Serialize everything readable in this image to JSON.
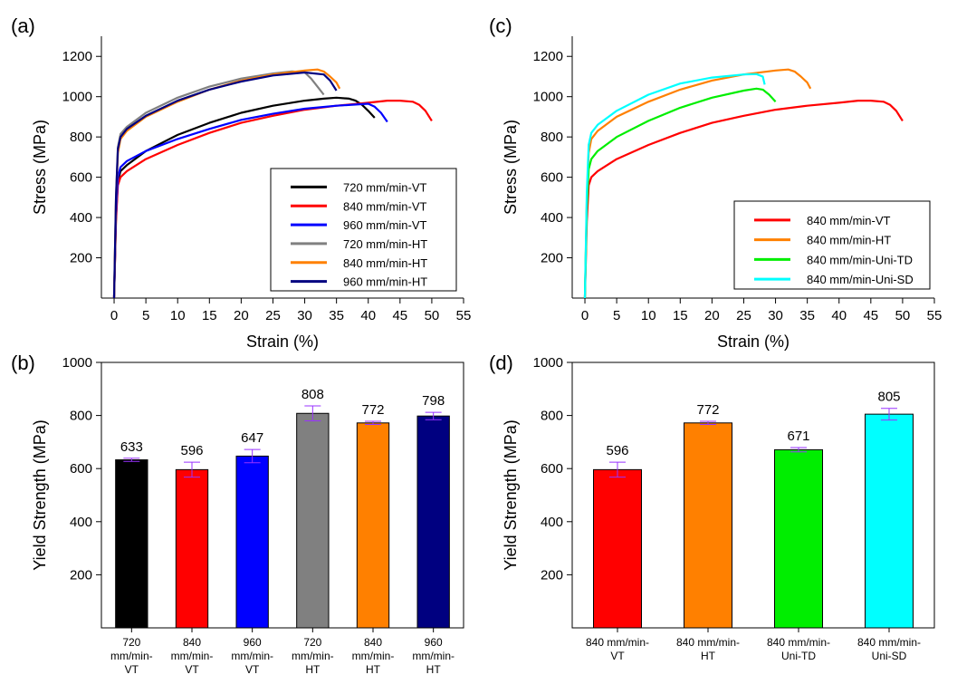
{
  "panels": {
    "a": "(a)",
    "b": "(b)",
    "c": "(c)",
    "d": "(d)"
  },
  "chart_data": [
    {
      "id": "a",
      "type": "line",
      "xlabel": "Strain (%)",
      "ylabel": "Stress (MPa)",
      "xlim": [
        -2,
        55
      ],
      "ylim": [
        0,
        1300
      ],
      "xticks": [
        0,
        5,
        10,
        15,
        20,
        25,
        30,
        35,
        40,
        45,
        50,
        55
      ],
      "yticks": [
        200,
        400,
        600,
        800,
        1000,
        1200
      ],
      "legend_position": "bottom-right",
      "series": [
        {
          "name": "720 mm/min-VT",
          "color": "#000000",
          "x": [
            0,
            0.3,
            0.6,
            1,
            2,
            5,
            10,
            15,
            20,
            25,
            30,
            33,
            35,
            37,
            38,
            39,
            40,
            41
          ],
          "y": [
            0,
            400,
            580,
            630,
            660,
            730,
            810,
            870,
            920,
            955,
            980,
            990,
            995,
            990,
            980,
            960,
            930,
            895
          ]
        },
        {
          "name": "840 mm/min-VT",
          "color": "#ff0000",
          "x": [
            0,
            0.3,
            0.6,
            1,
            2,
            5,
            10,
            15,
            20,
            25,
            30,
            35,
            40,
            43,
            45,
            47,
            48,
            49,
            50
          ],
          "y": [
            0,
            380,
            560,
            600,
            630,
            690,
            760,
            820,
            870,
            905,
            935,
            955,
            970,
            980,
            980,
            975,
            960,
            930,
            880
          ]
        },
        {
          "name": "960 mm/min-VT",
          "color": "#0000ff",
          "x": [
            0,
            0.3,
            0.6,
            1,
            2,
            5,
            10,
            15,
            20,
            25,
            30,
            35,
            40,
            41,
            42,
            43
          ],
          "y": [
            0,
            420,
            600,
            650,
            680,
            730,
            790,
            840,
            885,
            915,
            940,
            955,
            965,
            950,
            920,
            875
          ]
        },
        {
          "name": "720 mm/min-HT",
          "color": "#808080",
          "x": [
            0,
            0.3,
            0.6,
            1,
            2,
            5,
            10,
            15,
            20,
            25,
            28,
            30,
            31,
            32,
            33
          ],
          "y": [
            0,
            500,
            750,
            815,
            850,
            920,
            995,
            1050,
            1090,
            1115,
            1125,
            1120,
            1090,
            1050,
            1010
          ]
        },
        {
          "name": "840 mm/min-HT",
          "color": "#ff8000",
          "x": [
            0,
            0.3,
            0.6,
            1,
            2,
            5,
            10,
            15,
            20,
            25,
            30,
            32,
            33,
            34,
            35,
            35.5
          ],
          "y": [
            0,
            480,
            720,
            790,
            830,
            900,
            975,
            1035,
            1080,
            1110,
            1130,
            1135,
            1125,
            1100,
            1070,
            1040
          ]
        },
        {
          "name": "960 mm/min-HT",
          "color": "#000080",
          "x": [
            0,
            0.3,
            0.6,
            1,
            2,
            5,
            10,
            15,
            20,
            25,
            30,
            33,
            34,
            35
          ],
          "y": [
            0,
            500,
            740,
            800,
            840,
            905,
            980,
            1035,
            1075,
            1105,
            1120,
            1110,
            1080,
            1030
          ]
        }
      ]
    },
    {
      "id": "b",
      "type": "bar",
      "ylabel": "Yield Strength (MPa)",
      "ylim": [
        0,
        1000
      ],
      "yticks": [
        200,
        400,
        600,
        800,
        1000
      ],
      "categories": [
        [
          "720",
          "mm/min-",
          "VT"
        ],
        [
          "840",
          "mm/min-",
          "VT"
        ],
        [
          "960",
          "mm/min-",
          "VT"
        ],
        [
          "720",
          "mm/min-",
          "HT"
        ],
        [
          "840",
          "mm/min-",
          "HT"
        ],
        [
          "960",
          "mm/min-",
          "HT"
        ]
      ],
      "values": [
        633,
        596,
        647,
        808,
        772,
        798
      ],
      "errors": [
        6,
        28,
        25,
        28,
        6,
        14
      ],
      "value_labels": [
        "633",
        "596",
        "647",
        "808",
        "772",
        "798"
      ],
      "colors": [
        "#000000",
        "#ff0000",
        "#0000ff",
        "#808080",
        "#ff8000",
        "#000080"
      ],
      "error_color": "#9933ff"
    },
    {
      "id": "c",
      "type": "line",
      "xlabel": "Strain (%)",
      "ylabel": "Stress (MPa)",
      "xlim": [
        -2,
        55
      ],
      "ylim": [
        0,
        1300
      ],
      "xticks": [
        0,
        5,
        10,
        15,
        20,
        25,
        30,
        35,
        40,
        45,
        50,
        55
      ],
      "yticks": [
        200,
        400,
        600,
        800,
        1000,
        1200
      ],
      "legend_position": "bottom-right",
      "series": [
        {
          "name": "840 mm/min-VT",
          "color": "#ff0000",
          "x": [
            0,
            0.3,
            0.6,
            1,
            2,
            5,
            10,
            15,
            20,
            25,
            30,
            35,
            40,
            43,
            45,
            47,
            48,
            49,
            50
          ],
          "y": [
            0,
            380,
            560,
            600,
            630,
            690,
            760,
            820,
            870,
            905,
            935,
            955,
            970,
            980,
            980,
            975,
            960,
            930,
            880
          ]
        },
        {
          "name": "840 mm/min-HT",
          "color": "#ff8000",
          "x": [
            0,
            0.3,
            0.6,
            1,
            2,
            5,
            10,
            15,
            20,
            25,
            30,
            32,
            33,
            34,
            35,
            35.5
          ],
          "y": [
            0,
            480,
            720,
            790,
            830,
            900,
            975,
            1035,
            1080,
            1110,
            1130,
            1135,
            1125,
            1100,
            1070,
            1040
          ]
        },
        {
          "name": "840 mm/min-Uni-TD",
          "color": "#00ee00",
          "x": [
            0,
            0.3,
            0.6,
            1,
            2,
            5,
            10,
            15,
            20,
            25,
            27,
            28,
            29,
            30
          ],
          "y": [
            0,
            450,
            640,
            690,
            730,
            800,
            880,
            945,
            995,
            1030,
            1040,
            1035,
            1010,
            975
          ]
        },
        {
          "name": "840 mm/min-Uni-SD",
          "color": "#00ffff",
          "x": [
            0,
            0.3,
            0.6,
            1,
            2,
            5,
            10,
            15,
            20,
            25,
            27,
            28,
            28.3
          ],
          "y": [
            0,
            520,
            760,
            820,
            860,
            930,
            1010,
            1065,
            1095,
            1110,
            1112,
            1100,
            1060
          ]
        }
      ]
    },
    {
      "id": "d",
      "type": "bar",
      "ylabel": "Yield Strength (MPa)",
      "ylim": [
        0,
        1000
      ],
      "yticks": [
        200,
        400,
        600,
        800,
        1000
      ],
      "categories": [
        [
          "840 mm/min-",
          "VT"
        ],
        [
          "840 mm/min-",
          "HT"
        ],
        [
          "840 mm/min-",
          "Uni-TD"
        ],
        [
          "840 mm/min-",
          "Uni-SD"
        ]
      ],
      "values": [
        596,
        772,
        671,
        805
      ],
      "errors": [
        28,
        6,
        8,
        22
      ],
      "value_labels": [
        "596",
        "772",
        "671",
        "805"
      ],
      "colors": [
        "#ff0000",
        "#ff8000",
        "#00ee00",
        "#00ffff"
      ],
      "error_color": "#9933ff"
    }
  ]
}
